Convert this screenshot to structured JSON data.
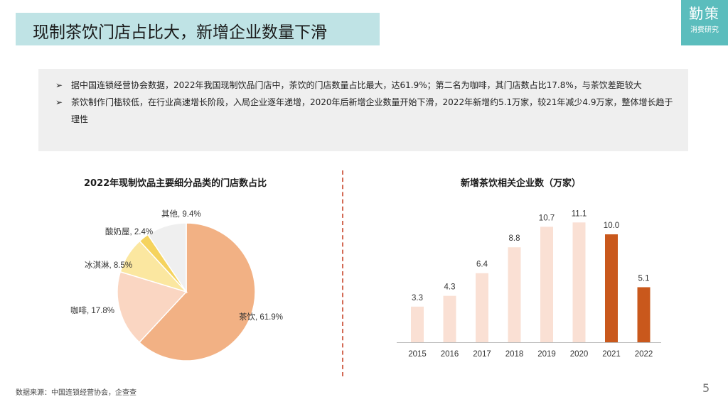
{
  "header": {
    "title": "现制茶饮门店占比大，新增企业数量下滑"
  },
  "brand": {
    "name": "勤策",
    "subtitle": "消费研究"
  },
  "summary": {
    "bullet_symbol": "➢",
    "bullets": [
      "据中国连锁经营协会数据，2022年我国现制饮品门店中，茶饮的门店数量占比最大，达61.9%；第二名为咖啡，其门店数占比17.8%，与茶饮差距较大",
      "茶饮制作门槛较低，在行业高速增长阶段，入局企业逐年递增，2020年后新增企业数量开始下滑，2022年新增约5.1万家，较21年减少4.9万家，整体增长趋于理性"
    ]
  },
  "chart_data": [
    {
      "type": "pie",
      "title": "2022年现制饮品主要细分品类的门店数占比",
      "categories": [
        "茶饮",
        "咖啡",
        "冰淇淋",
        "酸奶屋",
        "其他"
      ],
      "values": [
        61.9,
        17.8,
        8.5,
        2.4,
        9.4
      ],
      "unit": "%",
      "labels": [
        "茶饮, 61.9%",
        "咖啡, 17.8%",
        "冰淇淋, 8.5%",
        "酸奶屋, 2.4%",
        "其他, 9.4%"
      ],
      "colors": [
        "#f2b184",
        "#fad6c2",
        "#fbe7a0",
        "#f5d35e",
        "#efefef"
      ]
    },
    {
      "type": "bar",
      "title": "新增茶饮相关企业数（万家）",
      "categories": [
        "2015",
        "2016",
        "2017",
        "2018",
        "2019",
        "2020",
        "2021",
        "2022"
      ],
      "values": [
        3.3,
        4.3,
        6.4,
        8.8,
        10.7,
        11.1,
        10.0,
        5.1
      ],
      "value_labels": [
        "3.3",
        "4.3",
        "6.4",
        "8.8",
        "10.7",
        "11.1",
        "10.0",
        "5.1"
      ],
      "highlight": [
        "2021",
        "2022"
      ],
      "colors": {
        "normal": "#fae0d4",
        "highlight": "#c9581c",
        "axis": "#bbbbbb"
      },
      "grid": false
    }
  ],
  "footer": {
    "source": "数据来源：中国连锁经营协会，企查查",
    "page": "5"
  }
}
